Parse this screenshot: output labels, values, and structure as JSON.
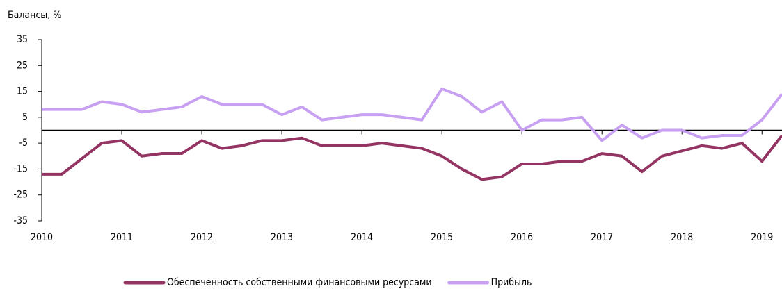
{
  "chart_data": {
    "type": "line",
    "title": "Балансы, %",
    "x": [
      2010,
      2010.25,
      2010.5,
      2010.75,
      2011,
      2011.25,
      2011.5,
      2011.75,
      2012,
      2012.25,
      2012.5,
      2012.75,
      2013,
      2013.25,
      2013.5,
      2013.75,
      2014,
      2014.25,
      2014.5,
      2014.75,
      2015,
      2015.25,
      2015.5,
      2015.75,
      2016,
      2016.25,
      2016.5,
      2016.75,
      2017,
      2017.25,
      2017.5,
      2017.75,
      2018,
      2018.25,
      2018.5,
      2018.75,
      2019,
      2019.25
    ],
    "series": [
      {
        "name": "Обеспеченность собственными финансовыми ресурсами",
        "color": "#943462",
        "values": [
          -17,
          -17,
          -11,
          -5,
          -4,
          -10,
          -9,
          -9,
          -4,
          -7,
          -6,
          -4,
          -4,
          -3,
          -6,
          -6,
          -6,
          -5,
          -6,
          -7,
          -10,
          -15,
          -19,
          -18,
          -13,
          -13,
          -12,
          -12,
          -9,
          -10,
          -16,
          -10,
          -8,
          -6,
          -7,
          -5,
          -12,
          -2
        ]
      },
      {
        "name": "Прибыль",
        "color": "#c8a0f2",
        "values": [
          8,
          8,
          8,
          11,
          10,
          7,
          8,
          9,
          13,
          10,
          10,
          10,
          6,
          9,
          4,
          5,
          6,
          6,
          5,
          4,
          16,
          13,
          7,
          11,
          0,
          4,
          4,
          5,
          -4,
          2,
          -3,
          0,
          0,
          -3,
          -2,
          -2,
          4,
          14
        ]
      }
    ],
    "xlim": [
      2010,
      2019.25
    ],
    "xticks": [
      2010,
      2011,
      2012,
      2013,
      2014,
      2015,
      2016,
      2017,
      2018,
      2019
    ],
    "ylim": [
      -35,
      35
    ],
    "yticks": [
      35,
      25,
      15,
      5,
      -5,
      -15,
      -25,
      -35
    ]
  }
}
